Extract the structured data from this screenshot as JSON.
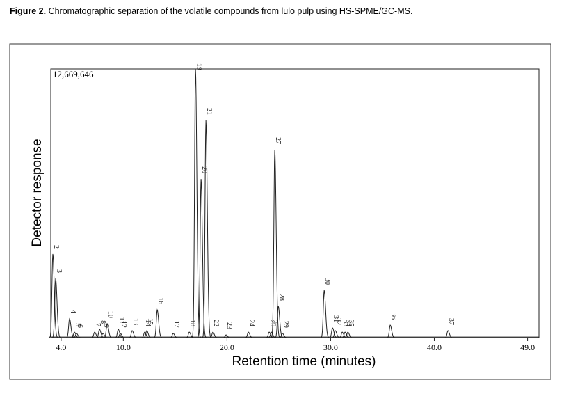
{
  "chart_data": {
    "type": "line",
    "figure_label": "Figure 2.",
    "title": "Chromatographic separation of the volatile compounds from lulo pulp using HS-SPME/GC-MS.",
    "x_label": "Retention time (minutes)",
    "y_label": "Detector response",
    "scale_label": "12,669,646",
    "labels": [
      "2",
      "3",
      "4",
      "5",
      "6",
      "7",
      "8",
      "9",
      "10",
      "11",
      "12",
      "13",
      "14",
      "15",
      "16",
      "17",
      "18",
      "19",
      "20",
      "21",
      "22",
      "23",
      "24",
      "25",
      "26",
      "27",
      "28",
      "29",
      "30",
      "31",
      "32",
      "33",
      "34",
      "35",
      "36",
      "37"
    ],
    "x": [
      3.2,
      3.47,
      4.81,
      5.28,
      5.48,
      7.23,
      7.7,
      8.03,
      8.44,
      9.51,
      9.71,
      10.85,
      12.06,
      12.26,
      13.27,
      14.81,
      16.36,
      16.96,
      17.5,
      17.97,
      18.64,
      19.91,
      22.06,
      24.07,
      24.28,
      24.61,
      24.95,
      25.35,
      29.38,
      30.18,
      30.45,
      31.12,
      31.39,
      31.66,
      35.75,
      41.32
    ],
    "values": [
      3940000,
      2790000,
      890000,
      260000,
      200000,
      260000,
      390000,
      200000,
      660000,
      390000,
      200000,
      330000,
      260000,
      330000,
      1310000,
      200000,
      260000,
      12669646,
      7480000,
      10240000,
      260000,
      130000,
      260000,
      260000,
      260000,
      8860000,
      1480000,
      200000,
      2230000,
      460000,
      330000,
      260000,
      260000,
      260000,
      590000,
      330000
    ],
    "color": "#222222",
    "xlim": [
      3.0,
      50.1
    ],
    "ylim": [
      0,
      12669646
    ],
    "xticks": [
      {
        "value": 4,
        "label": "4.0"
      },
      {
        "value": 10,
        "label": "10.0"
      },
      {
        "value": 20,
        "label": "20.0"
      },
      {
        "value": 30,
        "label": "30.0"
      },
      {
        "value": 40,
        "label": "40.0"
      },
      {
        "value": 49,
        "label": "49.0"
      }
    ]
  }
}
